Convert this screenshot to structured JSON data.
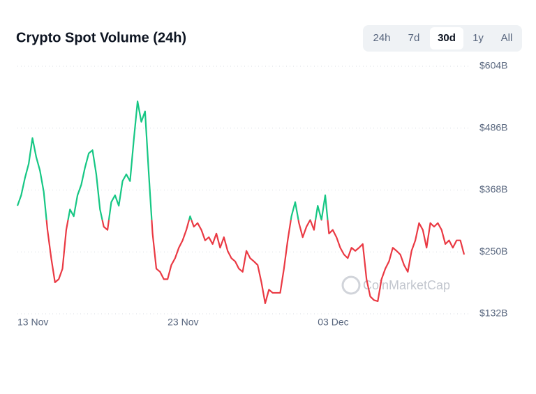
{
  "chart_data": {
    "type": "line",
    "title": "Crypto Spot Volume (24h)",
    "ranges": [
      "24h",
      "7d",
      "30d",
      "1y",
      "All"
    ],
    "active_range": 2,
    "watermark": "CoinMarketCap",
    "categories": [
      "13 Nov",
      null,
      null,
      null,
      null,
      null,
      null,
      null,
      null,
      null,
      null,
      null,
      null,
      null,
      null,
      null,
      null,
      null,
      null,
      null,
      null,
      null,
      null,
      null,
      null,
      null,
      null,
      null,
      null,
      null,
      null,
      null,
      null,
      null,
      null,
      null,
      null,
      null,
      null,
      null,
      "23 Nov",
      null,
      null,
      null,
      null,
      null,
      null,
      null,
      null,
      null,
      null,
      null,
      null,
      null,
      null,
      null,
      null,
      null,
      null,
      null,
      null,
      null,
      null,
      null,
      null,
      null,
      null,
      null,
      null,
      null,
      null,
      null,
      null,
      null,
      null,
      null,
      null,
      null,
      null,
      null,
      "03 Dec",
      null,
      null,
      null,
      null,
      null,
      null,
      null,
      null,
      null,
      null,
      null,
      null,
      null,
      null,
      null,
      null,
      null,
      null,
      null,
      null,
      null,
      null,
      null,
      null,
      null,
      null,
      null,
      null,
      null,
      null,
      null,
      null,
      null,
      null,
      null,
      null,
      null,
      null,
      null
    ],
    "values": [
      338,
      358,
      391,
      418,
      467,
      431,
      405,
      365,
      292,
      238,
      192,
      198,
      218,
      292,
      331,
      318,
      358,
      378,
      411,
      438,
      444,
      398,
      331,
      298,
      292,
      345,
      358,
      338,
      385,
      398,
      385,
      464,
      537,
      498,
      518,
      398,
      285,
      218,
      212,
      198,
      198,
      225,
      238,
      258,
      272,
      292,
      318,
      298,
      305,
      292,
      272,
      278,
      265,
      285,
      258,
      278,
      252,
      238,
      232,
      218,
      212,
      252,
      238,
      232,
      225,
      192,
      152,
      178,
      172,
      172,
      172,
      218,
      272,
      318,
      345,
      305,
      278,
      298,
      311,
      292,
      338,
      311,
      358,
      285,
      292,
      278,
      258,
      245,
      238,
      258,
      252,
      258,
      265,
      198,
      165,
      158,
      156,
      198,
      218,
      232,
      258,
      252,
      245,
      225,
      212,
      252,
      272,
      305,
      292,
      258,
      305,
      298,
      305,
      292,
      265,
      272,
      258,
      272,
      272,
      245
    ],
    "baseline": 311,
    "color_above": "#16c784",
    "color_below": "#ea3943",
    "ylim": [
      132,
      604
    ],
    "yticks": [
      {
        "value": 132,
        "label": "$132B"
      },
      {
        "value": 250,
        "label": "$250B"
      },
      {
        "value": 368,
        "label": "$368B"
      },
      {
        "value": 486,
        "label": "$486B"
      },
      {
        "value": 604,
        "label": "$604B"
      }
    ],
    "grid": true
  }
}
